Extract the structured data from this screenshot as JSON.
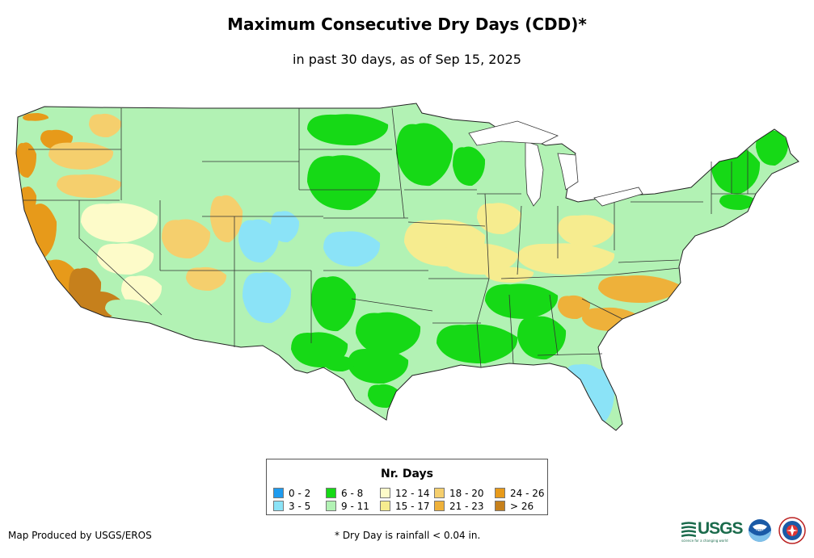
{
  "header": {
    "title": "Maximum Consecutive Dry Days (CDD)*",
    "subtitle": "in past 30 days, as of Sep 15, 2025"
  },
  "legend": {
    "title": "Nr. Days",
    "classes": [
      {
        "label": "0 - 2",
        "color": "#1e9bef"
      },
      {
        "label": "3 - 5",
        "color": "#8be3f7"
      },
      {
        "label": "6 - 8",
        "color": "#16d916"
      },
      {
        "label": "9 - 11",
        "color": "#b2f2b4"
      },
      {
        "label": "12 - 14",
        "color": "#fdfbc9"
      },
      {
        "label": "15 - 17",
        "color": "#f6ec8f"
      },
      {
        "label": "18 - 20",
        "color": "#f5cf6d"
      },
      {
        "label": "21 - 23",
        "color": "#eeb13a"
      },
      {
        "label": "24 - 26",
        "color": "#e79a1a"
      },
      {
        "label": "> 26",
        "color": "#c6801c"
      }
    ]
  },
  "footer": {
    "credit": "Map Produced by USGS/EROS",
    "footnote": "* Dry Day is rainfall < 0.04 in."
  },
  "logos": {
    "usgs_text": "USGS",
    "usgs_tagline": "science for a changing world",
    "noaa_text": "noaa"
  },
  "map_regions": [
    {
      "name": "pacific-northwest-coast",
      "cls": 8
    },
    {
      "name": "oregon-interior",
      "cls": 6
    },
    {
      "name": "california-central-valley",
      "cls": 8
    },
    {
      "name": "southern-california",
      "cls": 9
    },
    {
      "name": "nevada-basin",
      "cls": 4
    },
    {
      "name": "southwest-desert",
      "cls": 3
    },
    {
      "name": "northern-rockies",
      "cls": 3
    },
    {
      "name": "colorado-plateau",
      "cls": 6
    },
    {
      "name": "central-plains-wet",
      "cls": 1
    },
    {
      "name": "southern-plains",
      "cls": 2
    },
    {
      "name": "texas-gulf",
      "cls": 2
    },
    {
      "name": "midwest-corn-belt",
      "cls": 5
    },
    {
      "name": "ohio-valley",
      "cls": 5
    },
    {
      "name": "great-lakes",
      "cls": 3
    },
    {
      "name": "upper-midwest",
      "cls": 2
    },
    {
      "name": "southeast-carolinas",
      "cls": 7
    },
    {
      "name": "florida-peninsula",
      "cls": 1
    },
    {
      "name": "gulf-coast",
      "cls": 2
    },
    {
      "name": "northeast",
      "cls": 3
    },
    {
      "name": "new-england",
      "cls": 2
    }
  ]
}
